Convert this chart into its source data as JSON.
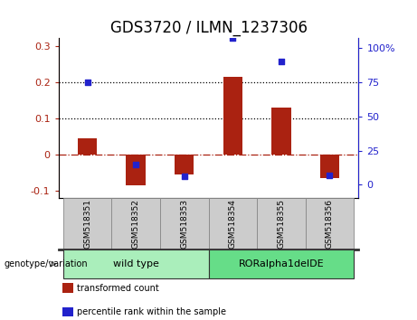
{
  "title": "GDS3720 / ILMN_1237306",
  "categories": [
    "GSM518351",
    "GSM518352",
    "GSM518353",
    "GSM518354",
    "GSM518355",
    "GSM518356"
  ],
  "bar_values": [
    0.045,
    -0.085,
    -0.055,
    0.215,
    0.13,
    -0.065
  ],
  "dot_values_pct": [
    75,
    15,
    6,
    107,
    90,
    7
  ],
  "bar_color": "#AA2211",
  "dot_color": "#2222CC",
  "ylim_left": [
    -0.12,
    0.32
  ],
  "ylim_right": [
    -10,
    107
  ],
  "yticks_left": [
    -0.1,
    0.0,
    0.1,
    0.2,
    0.3
  ],
  "yticks_right": [
    0,
    25,
    50,
    75,
    100
  ],
  "yticklabels_right": [
    "0",
    "25",
    "50",
    "75",
    "100%"
  ],
  "hlines": [
    0.1,
    0.2
  ],
  "zero_line": 0.0,
  "group_labels": [
    "wild type",
    "RORalpha1delDE"
  ],
  "group_ranges": [
    [
      0,
      3
    ],
    [
      3,
      6
    ]
  ],
  "group_colors": [
    "#AAEEBB",
    "#66DD88"
  ],
  "genotype_label": "genotype/variation",
  "legend_items": [
    "transformed count",
    "percentile rank within the sample"
  ],
  "legend_colors": [
    "#AA2211",
    "#2222CC"
  ],
  "background_color": "#FFFFFF",
  "title_fontsize": 12,
  "tick_fontsize": 8,
  "label_box_color": "#CCCCCC",
  "label_box_edge": "#888888"
}
